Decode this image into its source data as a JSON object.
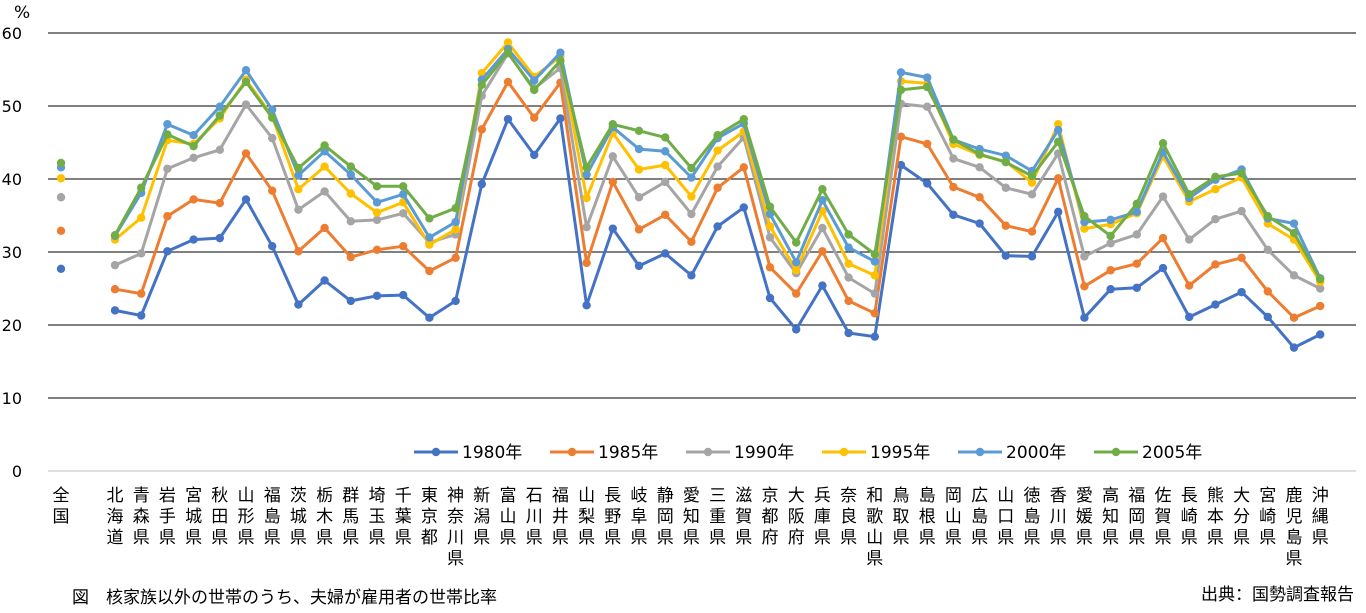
{
  "chart_data": {
    "type": "line",
    "y_unit": "%",
    "ylim": [
      0,
      60
    ],
    "yticks": [
      "0",
      "10",
      "20",
      "30",
      "40",
      "50",
      "60"
    ],
    "grid": true,
    "legend_position": "bottom-center",
    "national_category": "全国",
    "categories": [
      "北海道",
      "青森県",
      "岩手県",
      "宮城県",
      "秋田県",
      "山形県",
      "福島県",
      "茨城県",
      "栃木県",
      "群馬県",
      "埼玉県",
      "千葉県",
      "東京都",
      "神奈川県",
      "新潟県",
      "富山県",
      "石川県",
      "福井県",
      "山梨県",
      "長野県",
      "岐阜県",
      "静岡県",
      "愛知県",
      "三重県",
      "滋賀県",
      "京都府",
      "大阪府",
      "兵庫県",
      "奈良県",
      "和歌山県",
      "鳥取県",
      "島根県",
      "岡山県",
      "広島県",
      "山口県",
      "徳島県",
      "香川県",
      "愛媛県",
      "高知県",
      "福岡県",
      "佐賀県",
      "長崎県",
      "熊本県",
      "大分県",
      "宮崎県",
      "鹿児島県",
      "沖縄県"
    ],
    "series": [
      {
        "name": "1980年",
        "color": "#4472C4",
        "national": 27.7,
        "values": [
          22,
          21.3,
          30.1,
          31.7,
          31.9,
          37.2,
          30.8,
          22.8,
          26.1,
          23.3,
          24,
          24.1,
          21,
          23.3,
          39.3,
          48.2,
          43.3,
          48.3,
          22.7,
          33.2,
          28.1,
          29.8,
          26.8,
          33.5,
          36.1,
          23.7,
          19.4,
          25.4,
          18.9,
          18.4,
          41.9,
          39.4,
          35.1,
          33.9,
          29.5,
          29.4,
          35.5,
          21,
          24.9,
          25.1,
          27.8,
          21.1,
          22.8,
          24.5,
          21.1,
          16.9,
          18.7
        ]
      },
      {
        "name": "1985年",
        "color": "#ED7D31",
        "national": 32.9,
        "values": [
          24.9,
          24.3,
          34.9,
          37.2,
          36.7,
          43.5,
          38.4,
          30.1,
          33.3,
          29.3,
          30.3,
          30.8,
          27.4,
          29.2,
          46.8,
          53.3,
          48.4,
          53.2,
          28.5,
          39.6,
          33.1,
          35.1,
          31.4,
          38.8,
          41.6,
          27.9,
          24.3,
          30.1,
          23.3,
          21.6,
          45.8,
          44.8,
          38.9,
          37.5,
          33.6,
          32.8,
          40.1,
          25.3,
          27.5,
          28.4,
          31.9,
          25.4,
          28.3,
          29.2,
          24.6,
          21,
          22.6
        ]
      },
      {
        "name": "1990年",
        "color": "#A5A5A5",
        "national": 37.5,
        "values": [
          28.2,
          29.8,
          41.4,
          42.9,
          44,
          50.2,
          45.6,
          35.8,
          38.3,
          34.2,
          34.4,
          35.3,
          31.3,
          32.4,
          51.4,
          57.2,
          52.4,
          55.2,
          33.4,
          43.1,
          37.5,
          39.6,
          35.2,
          41.7,
          45.7,
          32,
          27.1,
          33.3,
          26.5,
          24.3,
          50.3,
          49.9,
          42.8,
          41.6,
          38.8,
          37.9,
          43.5,
          29.4,
          31.2,
          32.4,
          37.6,
          31.7,
          34.5,
          35.6,
          30.3,
          26.8,
          25
        ]
      },
      {
        "name": "1995年",
        "color": "#FFC000",
        "national": 40.1,
        "values": [
          31.7,
          34.7,
          45.3,
          44.8,
          48.3,
          53.6,
          48.6,
          38.6,
          41.7,
          38,
          35.4,
          36.8,
          31,
          33.1,
          54.5,
          58.7,
          54,
          56.8,
          37.4,
          46.3,
          41.3,
          41.9,
          37.6,
          43.9,
          46.5,
          33.5,
          27.5,
          35.6,
          28.4,
          26.8,
          53.4,
          53.1,
          44.8,
          43.3,
          42.4,
          39.5,
          47.5,
          33.2,
          33.8,
          35.3,
          43.1,
          36.9,
          38.6,
          40.2,
          33.9,
          31.7,
          25.9
        ]
      },
      {
        "name": "2000年",
        "color": "#5B9BD5",
        "national": 41.6,
        "values": [
          32.2,
          38.1,
          47.5,
          46,
          49.9,
          54.9,
          49.5,
          40.5,
          43.8,
          40.6,
          36.8,
          37.9,
          32,
          34.1,
          53.6,
          57.8,
          53.5,
          57.3,
          40.6,
          47.1,
          44.1,
          43.8,
          40.2,
          45.6,
          47.6,
          35.2,
          28.6,
          37.1,
          30.6,
          28.7,
          54.6,
          53.9,
          45.4,
          44.1,
          43.2,
          41.1,
          46.7,
          34.1,
          34.4,
          35.5,
          43.7,
          37.4,
          39.9,
          41.3,
          34.6,
          33.9,
          26.4
        ]
      },
      {
        "name": "2005年",
        "color": "#70AD47",
        "national": 42.2,
        "values": [
          32.3,
          38.8,
          46.1,
          44.5,
          48.7,
          53.3,
          48.4,
          41.5,
          44.6,
          41.7,
          39,
          39,
          34.6,
          36,
          52.9,
          57.3,
          52.2,
          56.2,
          41.6,
          47.5,
          46.6,
          45.7,
          41.5,
          46,
          48.2,
          36.2,
          31.3,
          38.6,
          32.4,
          29.7,
          52.2,
          52.6,
          45.4,
          43.4,
          42.3,
          40.4,
          45.1,
          34.9,
          32.2,
          36.6,
          44.9,
          37.9,
          40.3,
          40.8,
          34.9,
          32.6,
          26.3
        ]
      }
    ]
  },
  "caption": "図　核家族以外の世帯のうち、夫婦が雇用者の世帯比率",
  "source": "出典：国勢調査報告"
}
